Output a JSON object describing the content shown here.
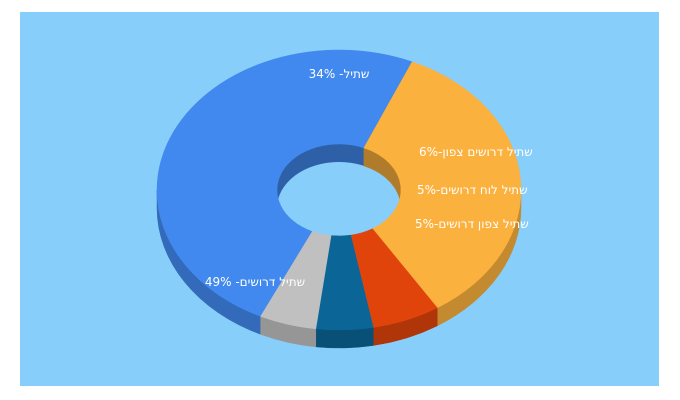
{
  "chart_data": {
    "type": "pie",
    "donut": true,
    "three_d": true,
    "background": "#87cefa",
    "legend": "none",
    "slices": [
      {
        "label": "שתיל דרושים",
        "value": 49,
        "color": "#4189ee",
        "text": "שתיל דרושים- 49%"
      },
      {
        "label": "שתיל",
        "value": 34,
        "color": "#fbb13d",
        "text": "שתיל- 34%"
      },
      {
        "label": "שתיל דרושים צפון",
        "value": 6,
        "color": "#e1440b",
        "text": "שתיל דרושים צפון- 6%"
      },
      {
        "label": "שתיל לוח דרושים",
        "value": 5,
        "color": "#0b6697",
        "text": "שתיל לוח דרושים- 5%"
      },
      {
        "label": "שתיל צפון דרושים",
        "value": 5,
        "color": "#c0c0c0",
        "text": "שתיל צפון דרושים- 5%"
      }
    ]
  }
}
